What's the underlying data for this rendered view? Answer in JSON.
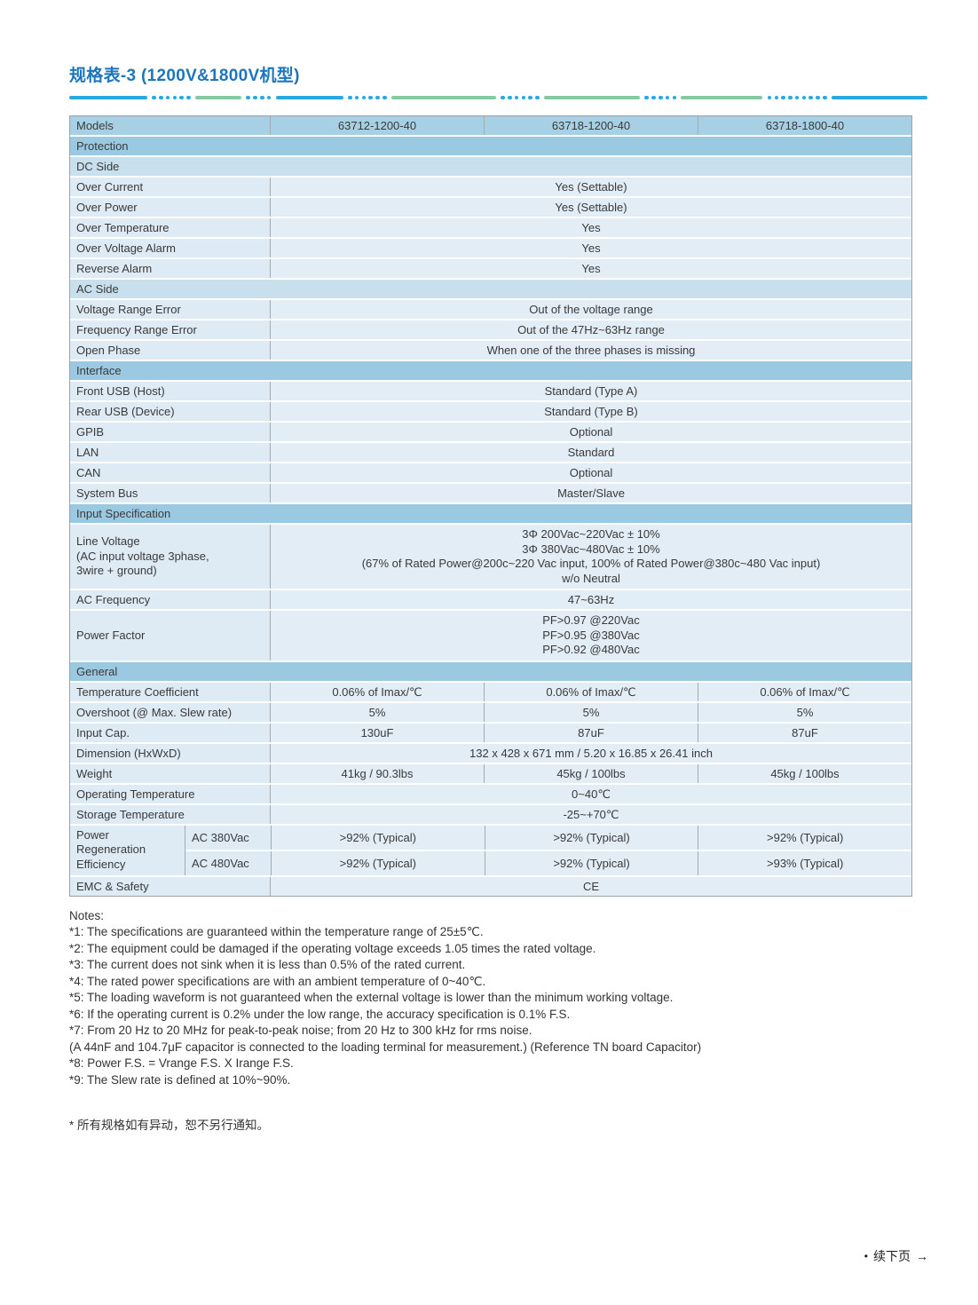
{
  "page": {
    "title": "规格表-3 (1200V&1800V机型)"
  },
  "colors": {
    "title_blue": "#1d76bd",
    "divider_blue": "#2aa9e1",
    "divider_green": "#85ca9e",
    "header_row_bg": "#a7d0e5",
    "section_row_bg": "#9bc9e2",
    "subsection_row_bg": "#c8e0ee",
    "data_cell_bg": "#deeaf4",
    "table_border_gray": "#9aa4ab"
  },
  "table": {
    "rows": [
      {
        "type": "models",
        "label": "Models",
        "values": [
          "63712-1200-40",
          "63718-1200-40",
          "63718-1800-40"
        ]
      },
      {
        "type": "section",
        "label": "Protection"
      },
      {
        "type": "subsection",
        "label": "DC Side"
      },
      {
        "type": "span",
        "label": "Over Current",
        "value": "Yes (Settable)"
      },
      {
        "type": "span",
        "label": "Over Power",
        "value": "Yes (Settable)"
      },
      {
        "type": "span",
        "label": "Over Temperature",
        "value": "Yes"
      },
      {
        "type": "span",
        "label": "Over Voltage Alarm",
        "value": "Yes"
      },
      {
        "type": "span",
        "label": "Reverse Alarm",
        "value": "Yes"
      },
      {
        "type": "subsection",
        "label": "AC Side"
      },
      {
        "type": "span",
        "label": "Voltage Range Error",
        "value": "Out of the voltage range"
      },
      {
        "type": "span",
        "label": "Frequency Range Error",
        "value": "Out of the 47Hz~63Hz range"
      },
      {
        "type": "span",
        "label": "Open Phase",
        "value": "When one of the three phases is missing"
      },
      {
        "type": "section",
        "label": "Interface"
      },
      {
        "type": "span",
        "label": "Front USB (Host)",
        "value": "Standard (Type A)"
      },
      {
        "type": "span",
        "label": "Rear USB (Device)",
        "value": "Standard (Type B)"
      },
      {
        "type": "span",
        "label": "GPIB",
        "value": "Optional"
      },
      {
        "type": "span",
        "label": "LAN",
        "value": "Standard"
      },
      {
        "type": "span",
        "label": "CAN",
        "value": "Optional"
      },
      {
        "type": "span",
        "label": "System Bus",
        "value": "Master/Slave"
      },
      {
        "type": "section",
        "label": "Input Specification"
      },
      {
        "type": "multispan",
        "label_lines": [
          "Line Voltage",
          "(AC input voltage 3phase,",
          "3wire + ground)"
        ],
        "value_lines": [
          "3Φ 200Vac~220Vac ± 10%",
          "3Φ 380Vac~480Vac ± 10%",
          "(67% of Rated Power@200c~220 Vac input, 100% of Rated Power@380c~480 Vac input)",
          "w/o Neutral"
        ]
      },
      {
        "type": "span",
        "label": "AC Frequency",
        "value": "47~63Hz"
      },
      {
        "type": "multispan",
        "label_lines": [
          "Power Factor"
        ],
        "value_lines": [
          "PF>0.97 @220Vac",
          "PF>0.95 @380Vac",
          "PF>0.92 @480Vac"
        ]
      },
      {
        "type": "section",
        "label": "General"
      },
      {
        "type": "cols",
        "label": "Temperature Coefficient",
        "values": [
          "0.06% of Imax/℃",
          "0.06% of Imax/℃",
          "0.06% of Imax/℃"
        ]
      },
      {
        "type": "cols",
        "label": "Overshoot (@ Max. Slew rate)",
        "values": [
          "5%",
          "5%",
          "5%"
        ]
      },
      {
        "type": "cols",
        "label": "Input Cap.",
        "values": [
          "130uF",
          "87uF",
          "87uF"
        ]
      },
      {
        "type": "span",
        "label": "Dimension (HxWxD)",
        "value": "132 x 428 x 671 mm / 5.20 x 16.85 x 26.41 inch"
      },
      {
        "type": "cols",
        "label": "Weight",
        "values": [
          "41kg / 90.3lbs",
          "45kg / 100lbs",
          "45kg / 100lbs"
        ]
      },
      {
        "type": "span",
        "label": "Operating Temperature",
        "value": "0~40℃"
      },
      {
        "type": "span",
        "label": "Storage Temperature",
        "value": "-25~+70℃"
      },
      {
        "type": "regen",
        "label_lines": [
          "Power",
          "Regeneration",
          "Efficiency"
        ],
        "subrows": [
          {
            "sublabel": "AC 380Vac",
            "values": [
              ">92% (Typical)",
              ">92% (Typical)",
              ">92% (Typical)"
            ]
          },
          {
            "sublabel": "AC 480Vac",
            "values": [
              ">92% (Typical)",
              ">92% (Typical)",
              ">93% (Typical)"
            ]
          }
        ]
      },
      {
        "type": "span",
        "label": "EMC & Safety",
        "value": "CE"
      }
    ]
  },
  "notes": {
    "heading": "Notes:",
    "items": [
      "*1: The specifications are guaranteed within the temperature range of 25±5℃.",
      "*2: The equipment could be damaged if the operating voltage exceeds 1.05 times the rated voltage.",
      "*3: The current does not sink when it is less than 0.5% of the rated current.",
      "*4: The rated power specifications are with an ambient temperature of 0~40℃.",
      "*5: The loading waveform is not guaranteed when the external voltage is lower than the minimum working voltage.",
      "*6: If the operating current is 0.2% under the low range, the accuracy specification is 0.1% F.S.",
      "*7: From 20 Hz to 20 MHz for peak-to-peak noise; from 20 Hz to 300 kHz for rms noise.",
      "(A 44nF and 104.7μF capacitor is connected to the loading terminal for measurement.) (Reference TN board Capacitor)",
      "*8: Power F.S. = Vrange F.S. X Irange F.S.",
      "*9: The Slew rate is defined at 10%~90%."
    ],
    "disclaimer": "* 所有规格如有异动，恕不另行通知。"
  },
  "footer": {
    "bullet": "•",
    "label": "续下页",
    "arrow": "→"
  }
}
